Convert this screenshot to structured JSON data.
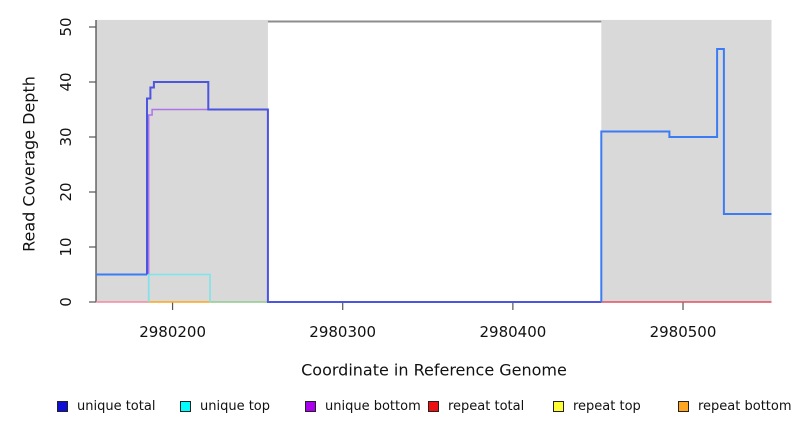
{
  "figure": {
    "ylabel": "Read Coverage Depth",
    "xlabel": "Coordinate in Reference Genome"
  },
  "chart_data": {
    "type": "line",
    "subtype": "step-coverage-plot",
    "title": "",
    "xlabel": "Coordinate in Reference Genome",
    "ylabel": "Read Coverage Depth",
    "xlim": [
      2980155,
      2980552
    ],
    "ylim": [
      0,
      51.3
    ],
    "grid": false,
    "legend_position": "bottom",
    "x_ticks": [
      {
        "value": 2980200,
        "label": "2980200"
      },
      {
        "value": 2980300,
        "label": "2980300"
      },
      {
        "value": 2980400,
        "label": "2980400"
      },
      {
        "value": 2980500,
        "label": "2980500"
      }
    ],
    "y_ticks": [
      {
        "value": 0,
        "label": "0"
      },
      {
        "value": 10,
        "label": "10"
      },
      {
        "value": 20,
        "label": "20"
      },
      {
        "value": 30,
        "label": "30"
      },
      {
        "value": 40,
        "label": "40"
      },
      {
        "value": 50,
        "label": "50"
      }
    ],
    "shaded_regions": [
      {
        "name": "masked-region-left",
        "x0": 2980155,
        "x1": 2980256,
        "y0": 0,
        "y1": 51.3,
        "color": "#d9d9d9"
      },
      {
        "name": "masked-region-right",
        "x0": 2980452,
        "x1": 2980552,
        "y0": 0,
        "y1": 51.3,
        "color": "#d9d9d9"
      }
    ],
    "boundary_line": {
      "name": "unmasked-window-top-line",
      "color": "#8c8c8c",
      "width": 2,
      "points": [
        [
          2980256,
          51
        ],
        [
          2980452,
          51
        ]
      ]
    },
    "series": [
      {
        "name": "unique total",
        "legend_color": "#0f0fd6",
        "polylines": [
          {
            "color": "#3b7cf5",
            "width": 2,
            "points": [
              [
                2980155,
                5
              ],
              [
                2980185,
                5
              ]
            ]
          },
          {
            "color": "#4c55e0",
            "width": 2,
            "points": [
              [
                2980185,
                5
              ],
              [
                2980185,
                37
              ],
              [
                2980187,
                37
              ],
              [
                2980187,
                39
              ],
              [
                2980189,
                39
              ],
              [
                2980189,
                40
              ],
              [
                2980221,
                40
              ],
              [
                2980221,
                35
              ],
              [
                2980256,
                35
              ],
              [
                2980256,
                0
              ],
              [
                2980452,
                0
              ]
            ]
          },
          {
            "color": "#3b7cf5",
            "width": 2,
            "points": [
              [
                2980452,
                0
              ],
              [
                2980452,
                31
              ],
              [
                2980492,
                31
              ],
              [
                2980492,
                30
              ],
              [
                2980520,
                30
              ],
              [
                2980520,
                46
              ],
              [
                2980524,
                46
              ],
              [
                2980524,
                16
              ],
              [
                2980552,
                16
              ]
            ]
          }
        ]
      },
      {
        "name": "unique top",
        "legend_color": "#00ffff",
        "polylines": [
          {
            "color": "#79e6ec",
            "width": 1.5,
            "points": [
              [
                2980186,
                0
              ],
              [
                2980186,
                5
              ],
              [
                2980222,
                5
              ],
              [
                2980222,
                0
              ]
            ]
          }
        ]
      },
      {
        "name": "unique bottom",
        "legend_color": "#aa00ee",
        "polylines": [
          {
            "color": "#ad74e8",
            "width": 1.5,
            "points": [
              [
                2980186,
                0
              ],
              [
                2980186,
                34
              ],
              [
                2980188,
                34
              ],
              [
                2980188,
                35
              ],
              [
                2980256,
                35
              ],
              [
                2980256,
                0
              ]
            ]
          }
        ]
      },
      {
        "name": "repeat total",
        "legend_color": "#ee1111",
        "polylines": [
          {
            "color": "#f28aa2",
            "width": 1.5,
            "points": [
              [
                2980155,
                0
              ],
              [
                2980186,
                0
              ]
            ]
          },
          {
            "color": "#e04e63",
            "width": 1.5,
            "points": [
              [
                2980452,
                0
              ],
              [
                2980552,
                0
              ]
            ]
          }
        ]
      },
      {
        "name": "repeat top",
        "legend_color": "#ffff33",
        "polylines": []
      },
      {
        "name": "repeat bottom",
        "legend_color": "#ffa51e",
        "polylines": [
          {
            "color": "#ffa51e",
            "width": 1.5,
            "points": [
              [
                2980186,
                0
              ],
              [
                2980222,
                0
              ]
            ]
          }
        ]
      }
    ],
    "overlay_polylines": [
      {
        "name": "zero-level-green-segment",
        "color": "#8fca8f",
        "width": 1.5,
        "points": [
          [
            2980222,
            0
          ],
          [
            2980256,
            0
          ]
        ]
      }
    ]
  },
  "legend": {
    "items": [
      {
        "label": "unique total",
        "color": "#0f0fd6"
      },
      {
        "label": "unique top",
        "color": "#00ffff"
      },
      {
        "label": "unique bottom",
        "color": "#aa00ee"
      },
      {
        "label": "repeat total",
        "color": "#ee1111"
      },
      {
        "label": "repeat top",
        "color": "#ffff33"
      },
      {
        "label": "repeat bottom",
        "color": "#ffa51e"
      }
    ]
  }
}
